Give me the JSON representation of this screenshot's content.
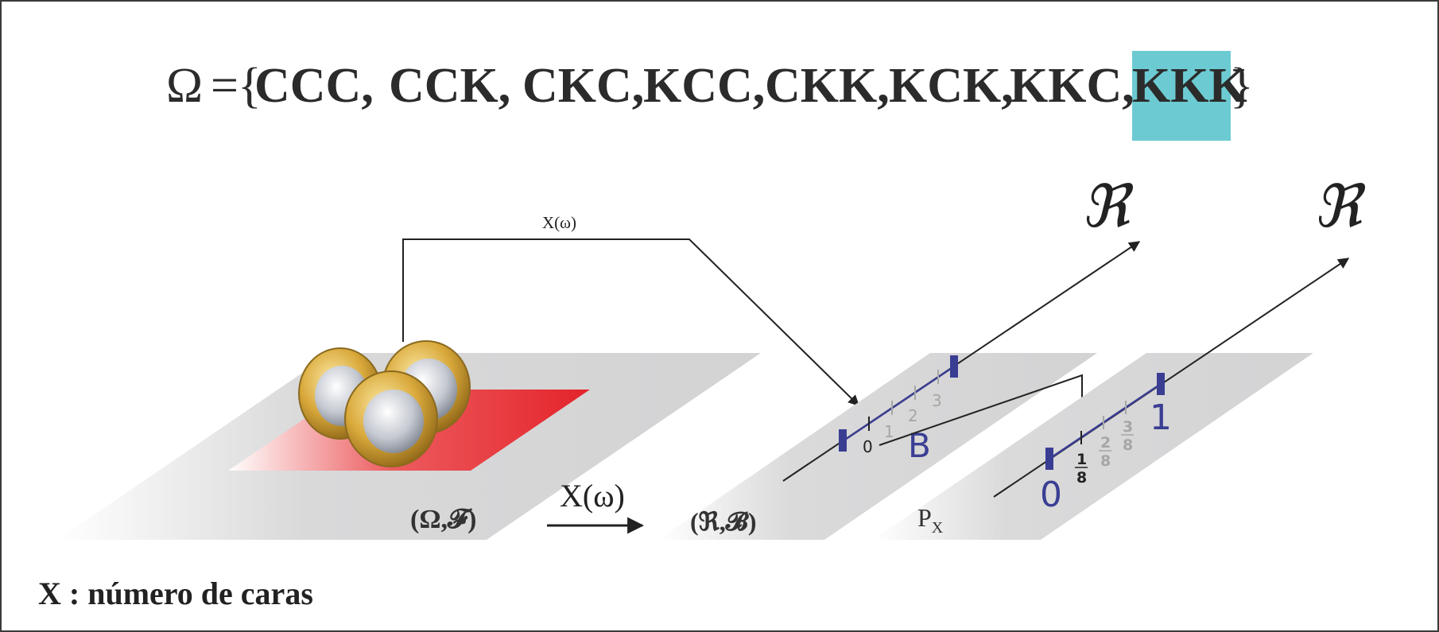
{
  "sample_space": {
    "symbol": "Ω",
    "equals": "=",
    "open_brace": "{",
    "close_brace": "}",
    "outcomes": [
      "CCC,",
      "CCK,",
      "CKC,",
      "KCC,",
      "CKK,",
      "KCK,",
      "KKC,",
      "KKK"
    ],
    "highlighted_outcome": "KKK",
    "highlight_color": "#6ccbd2"
  },
  "mapping": {
    "small_label": "X(ω)",
    "main_label": "X(ω)"
  },
  "spaces": {
    "sample_space_label": "(Ω,𝓕)",
    "borel_space_label": "(ℜ,𝓑)",
    "prob_space_label_main": "P",
    "prob_space_label_sub": "X"
  },
  "real_axes": {
    "axis_symbol": "ℜ",
    "first": {
      "ticks": [
        "0",
        "1",
        "2",
        "3"
      ],
      "set_label": "B"
    },
    "second": {
      "ticks": [
        {
          "num": "1",
          "den": "8"
        },
        {
          "num": "2",
          "den": "8"
        },
        {
          "num": "3",
          "den": "8"
        }
      ],
      "start_label": "0",
      "end_label": "1"
    }
  },
  "caption": "X : número de caras",
  "colors": {
    "plane": "#d9d9da",
    "red_region": "#e8262b",
    "interval": "#3a3e93",
    "tick_gray": "#a6a6a6",
    "line": "#222222"
  }
}
